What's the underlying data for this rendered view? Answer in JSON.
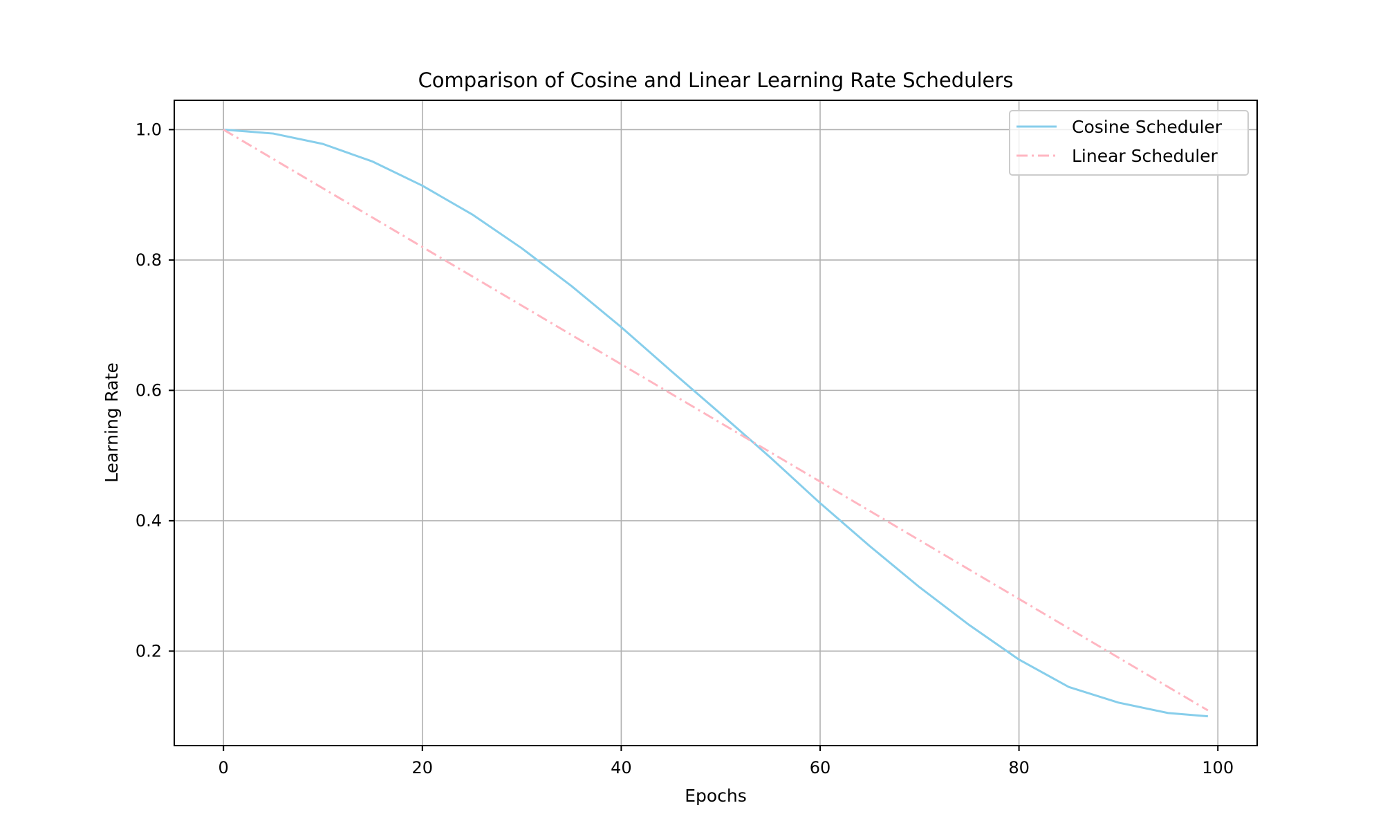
{
  "chart_data": {
    "type": "line",
    "title": "Comparison of Cosine and Linear Learning Rate Schedulers",
    "xlabel": "Epochs",
    "ylabel": "Learning Rate",
    "xlim": [
      -4.95,
      103.95
    ],
    "ylim": [
      0.055,
      1.045
    ],
    "grid": true,
    "legend_position": "top-right",
    "x_ticks": [
      0,
      20,
      40,
      60,
      80,
      100
    ],
    "x_tick_labels": [
      "0",
      "20",
      "40",
      "60",
      "80",
      "100"
    ],
    "y_ticks": [
      0.2,
      0.4,
      0.6,
      0.8,
      1.0
    ],
    "y_tick_labels": [
      "0.2",
      "0.4",
      "0.6",
      "0.8",
      "1.0"
    ],
    "x": [
      0,
      5,
      10,
      15,
      20,
      25,
      30,
      35,
      40,
      45,
      50,
      55,
      60,
      65,
      70,
      75,
      80,
      85,
      90,
      95,
      99
    ],
    "series": [
      {
        "name": "Cosine Scheduler",
        "color": "#87ceeb",
        "line_style": "solid",
        "values": [
          1.0,
          0.994,
          0.978,
          0.951,
          0.914,
          0.87,
          0.818,
          0.76,
          0.697,
          0.63,
          0.564,
          0.497,
          0.427,
          0.361,
          0.298,
          0.24,
          0.187,
          0.145,
          0.121,
          0.105,
          0.1
        ]
      },
      {
        "name": "Linear Scheduler",
        "color": "#ffb6c1",
        "line_style": "dashdot",
        "values": [
          1.0,
          0.955,
          0.91,
          0.865,
          0.82,
          0.775,
          0.73,
          0.685,
          0.64,
          0.595,
          0.55,
          0.505,
          0.46,
          0.415,
          0.37,
          0.325,
          0.28,
          0.235,
          0.19,
          0.145,
          0.109
        ]
      }
    ]
  }
}
